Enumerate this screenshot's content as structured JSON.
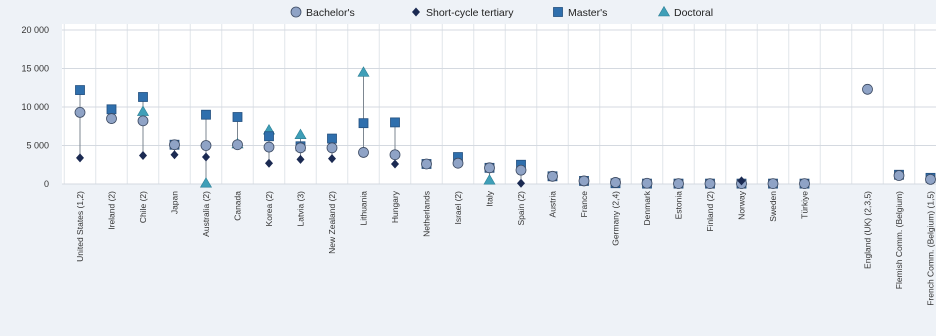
{
  "chart_data": {
    "type": "scatter",
    "title": "",
    "xlabel": "",
    "ylabel": "",
    "ylim": [
      0,
      20000
    ],
    "yticks": [
      0,
      5000,
      10000,
      15000,
      20000
    ],
    "ytick_labels": [
      "0",
      "5 000",
      "10 000",
      "15 000",
      "20 000"
    ],
    "grid": true,
    "legend": "top-center",
    "categories": [
      "United States (1,2)",
      "Ireland (2)",
      "Chile (2)",
      "Japan",
      "Australia (2)",
      "Canada",
      "Korea (2)",
      "Latvia (3)",
      "New Zealand (2)",
      "Lithuania",
      "Hungary",
      "Netherlands",
      "Israel (2)",
      "Italy",
      "Spain (2)",
      "Austria",
      "France",
      "Germany (2,4)",
      "Denmark",
      "Estonia",
      "Finland (2)",
      "Norway",
      "Sweden",
      "Türkiye",
      "",
      "England (UK) (2,3,5)",
      "Flemish Comm. (Belgium)",
      "French Comm. (Belgium) (1,5)"
    ],
    "series": [
      {
        "name": "Bachelor's",
        "marker": "circle",
        "color": "#8fa3c6",
        "values": [
          9300,
          8500,
          8200,
          5100,
          5000,
          5100,
          4800,
          4700,
          4700,
          4100,
          3800,
          2600,
          2700,
          2100,
          1800,
          1000,
          400,
          200,
          100,
          50,
          50,
          50,
          50,
          50,
          null,
          12300,
          1100,
          600
        ]
      },
      {
        "name": "Short-cycle tertiary",
        "marker": "diamond",
        "color": "#1b2a52",
        "values": [
          3400,
          null,
          3700,
          3800,
          3500,
          null,
          2700,
          3200,
          3300,
          null,
          2600,
          null,
          null,
          null,
          100,
          null,
          null,
          null,
          null,
          null,
          null,
          400,
          null,
          null,
          null,
          null,
          null,
          null
        ]
      },
      {
        "name": "Master's",
        "marker": "square",
        "color": "#2f6fad",
        "values": [
          12200,
          9700,
          11300,
          5100,
          9000,
          8700,
          6200,
          4900,
          5900,
          7900,
          8000,
          2600,
          3500,
          2100,
          2500,
          1000,
          400,
          100,
          50,
          50,
          50,
          50,
          50,
          50,
          null,
          null,
          1200,
          800
        ]
      },
      {
        "name": "Doctoral",
        "marker": "triangle",
        "color": "#3f9fb8",
        "values": [
          null,
          null,
          9400,
          null,
          100,
          5200,
          7000,
          6400,
          null,
          14500,
          null,
          null,
          null,
          500,
          null,
          null,
          null,
          null,
          null,
          null,
          null,
          null,
          null,
          null,
          null,
          null,
          null,
          null
        ]
      }
    ]
  }
}
